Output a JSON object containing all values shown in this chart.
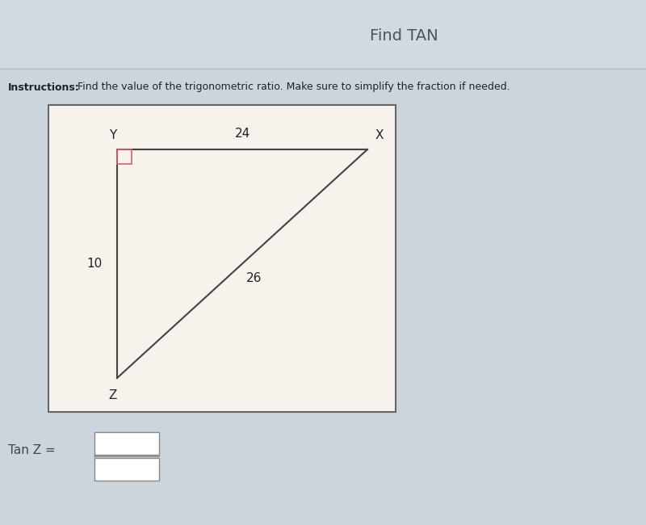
{
  "title": "Find TAN",
  "instructions_bold": "Instructions:",
  "instructions_text": " Find the value of the trigonometric ratio. Make sure to simplify the fraction if needed.",
  "bg_color": "#cdd5dc",
  "box_bg": "#f7f2ec",
  "box_border": "#666666",
  "title_fontsize": 14,
  "instructions_fontsize": 9,
  "label_Y": "Y",
  "label_X": "X",
  "label_Z": "Z",
  "side_YX": "24",
  "side_ZX": "26",
  "side_YZ": "10",
  "right_angle_color": "#cc6666",
  "tan_label": "Tan Z =",
  "fraction_box_color": "#ffffff",
  "fraction_box_border": "#888888"
}
